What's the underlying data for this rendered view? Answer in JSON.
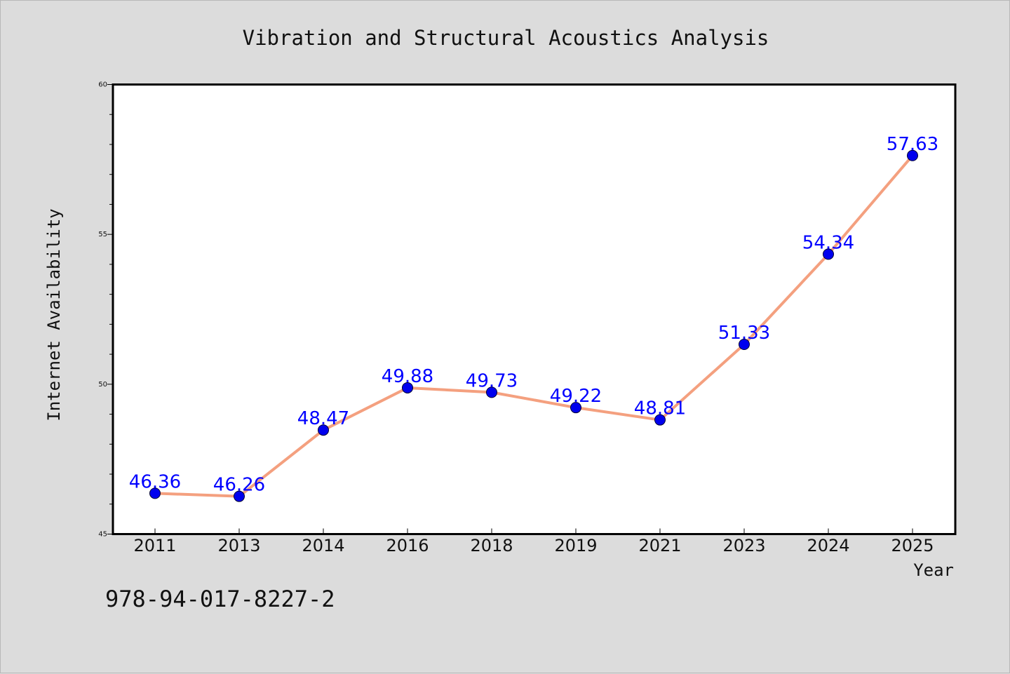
{
  "chart_data": {
    "type": "line",
    "title": "Vibration and Structural Acoustics Analysis",
    "xlabel": "Year",
    "ylabel": "Internet Availability",
    "categories": [
      "2011",
      "2013",
      "2014",
      "2016",
      "2018",
      "2019",
      "2021",
      "2023",
      "2024",
      "2025"
    ],
    "values": [
      46.36,
      46.26,
      48.47,
      49.88,
      49.73,
      49.22,
      48.81,
      51.33,
      54.34,
      57.63
    ],
    "data_labels": [
      "46.36",
      "46.26",
      "48.47",
      "49.88",
      "49.73",
      "49.22",
      "48.81",
      "51.33",
      "54.34",
      "57.63"
    ],
    "ylim": [
      45,
      60
    ],
    "yticks": [
      45,
      50,
      55,
      60
    ],
    "ytick_labels": [
      "45",
      "50",
      "55",
      "60"
    ],
    "grid": false,
    "legend": "none",
    "line_color": "#f4a07f",
    "marker_color": "#0000ee",
    "label_color": "#0000ff",
    "background_color": "#dcdcdc",
    "plot_background_color": "#ffffff"
  },
  "annotation": {
    "text": "978-94-017-8227-2"
  }
}
